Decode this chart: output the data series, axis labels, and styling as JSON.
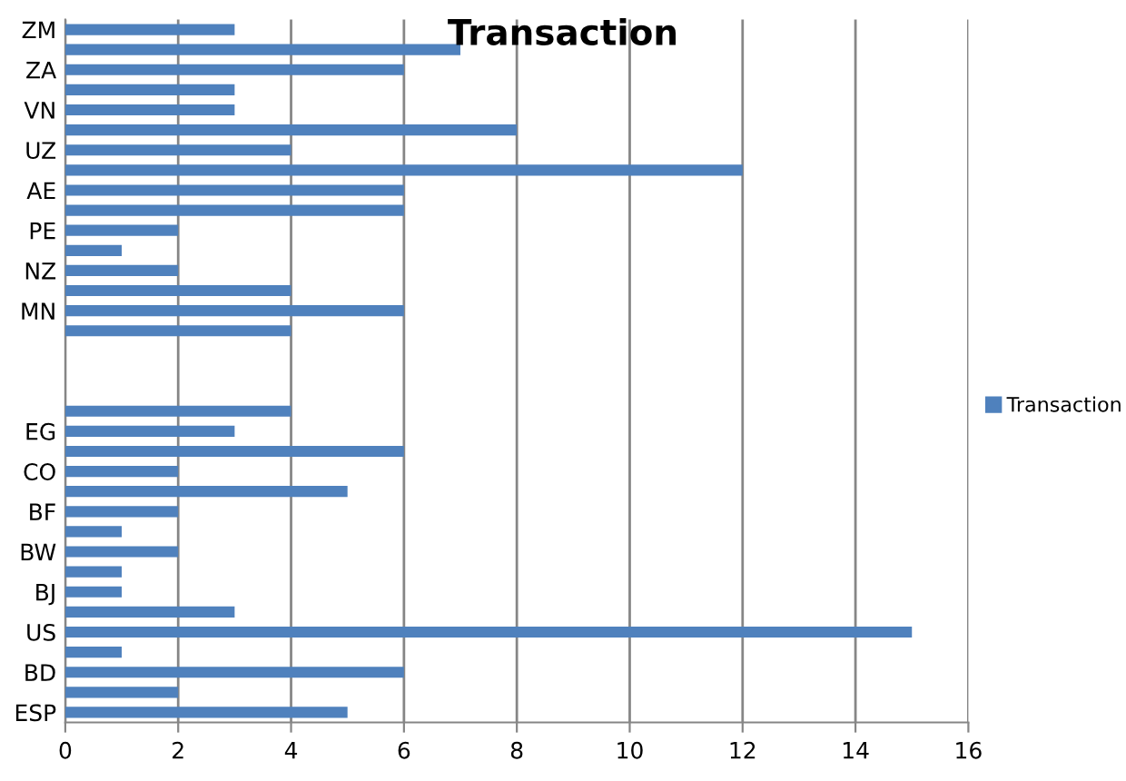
{
  "chart_data": {
    "type": "bar",
    "orientation": "horizontal",
    "title": "Transaction",
    "categories": [
      "ZM",
      null,
      "ZA",
      null,
      "VN",
      null,
      "UZ",
      null,
      "AE",
      null,
      "PE",
      null,
      "NZ",
      null,
      "MN",
      null,
      null,
      null,
      null,
      null,
      "EG",
      null,
      "CO",
      null,
      "BF",
      null,
      "BW",
      null,
      "BJ",
      null,
      "US",
      null,
      "BD",
      null,
      "ESP"
    ],
    "series": [
      {
        "name": "Transaction",
        "color": "#4f81bd",
        "values": [
          3,
          7,
          6,
          3,
          3,
          8,
          4,
          12,
          6,
          6,
          2,
          1,
          2,
          4,
          6,
          4,
          null,
          null,
          null,
          4,
          3,
          6,
          2,
          5,
          2,
          1,
          2,
          1,
          1,
          3,
          15,
          1,
          6,
          2,
          5
        ]
      }
    ],
    "xlim": [
      0,
      16
    ],
    "xticks": [
      0,
      2,
      4,
      6,
      8,
      10,
      12,
      14,
      16
    ],
    "grid": "x",
    "legend": "right"
  }
}
